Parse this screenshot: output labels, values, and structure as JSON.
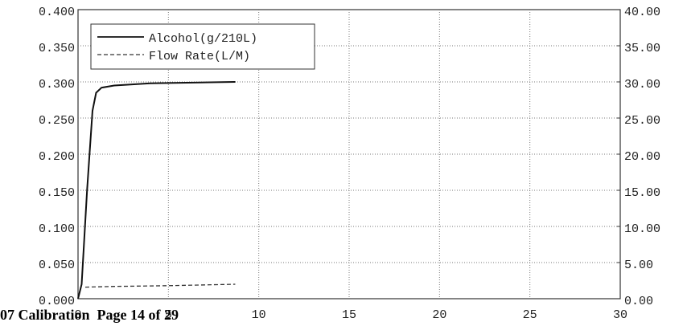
{
  "chart_data": {
    "type": "line",
    "footer": "07 Calibration  Page 14 of 29",
    "series": [
      {
        "name": "Alcohol(g/210L)",
        "color": "#111111",
        "style": "solid",
        "axis": "y",
        "x": [
          0,
          0.2,
          0.5,
          0.8,
          1.0,
          1.3,
          2,
          4,
          8.7
        ],
        "values": [
          0,
          0.02,
          0.15,
          0.26,
          0.285,
          0.292,
          0.295,
          0.298,
          0.3
        ]
      },
      {
        "name": "Flow Rate(L/M)",
        "color": "#333333",
        "style": "dashed",
        "axis": "y2",
        "x": [
          0.4,
          2,
          5,
          8.7
        ],
        "values": [
          1.6,
          1.7,
          1.8,
          2.0
        ]
      }
    ],
    "xlim": [
      0,
      30
    ],
    "xticks": [
      0,
      5,
      10,
      15,
      20,
      25,
      30
    ],
    "ylim": [
      0,
      0.4
    ],
    "yticks": [
      {
        "value": 0,
        "label": "0.000"
      },
      {
        "value": 0.05,
        "label": "0.050"
      },
      {
        "value": 0.1,
        "label": "0.100"
      },
      {
        "value": 0.15,
        "label": "0.150"
      },
      {
        "value": 0.2,
        "label": "0.200"
      },
      {
        "value": 0.25,
        "label": "0.250"
      },
      {
        "value": 0.3,
        "label": "0.300"
      },
      {
        "value": 0.35,
        "label": "0.350"
      },
      {
        "value": 0.4,
        "label": "0.400"
      }
    ],
    "y2lim": [
      0,
      40
    ],
    "y2ticks": [
      {
        "value": 0,
        "label": "0.00"
      },
      {
        "value": 5,
        "label": "5.00"
      },
      {
        "value": 10,
        "label": "10.00"
      },
      {
        "value": 15,
        "label": "15.00"
      },
      {
        "value": 20,
        "label": "20.00"
      },
      {
        "value": 25,
        "label": "25.00"
      },
      {
        "value": 30,
        "label": "30.00"
      },
      {
        "value": 35,
        "label": "35.00"
      },
      {
        "value": 40,
        "label": "40.00"
      }
    ],
    "grid": true,
    "legend": "upper left"
  }
}
